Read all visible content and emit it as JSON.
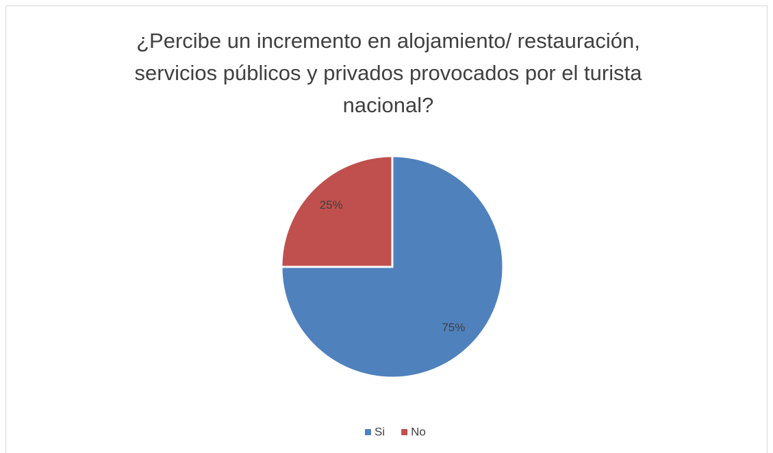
{
  "chart_data": {
    "type": "pie",
    "title": [
      "¿Percibe un incremento en alojamiento/ restauración,",
      "servicios públicos y privados provocados por el turista",
      "nacional?"
    ],
    "categories": [
      "Si",
      "No"
    ],
    "values": [
      75,
      25
    ],
    "value_labels": [
      "75%",
      "25%"
    ],
    "colors": [
      "#4f81bd",
      "#c0504d"
    ],
    "legend": "bottom"
  }
}
